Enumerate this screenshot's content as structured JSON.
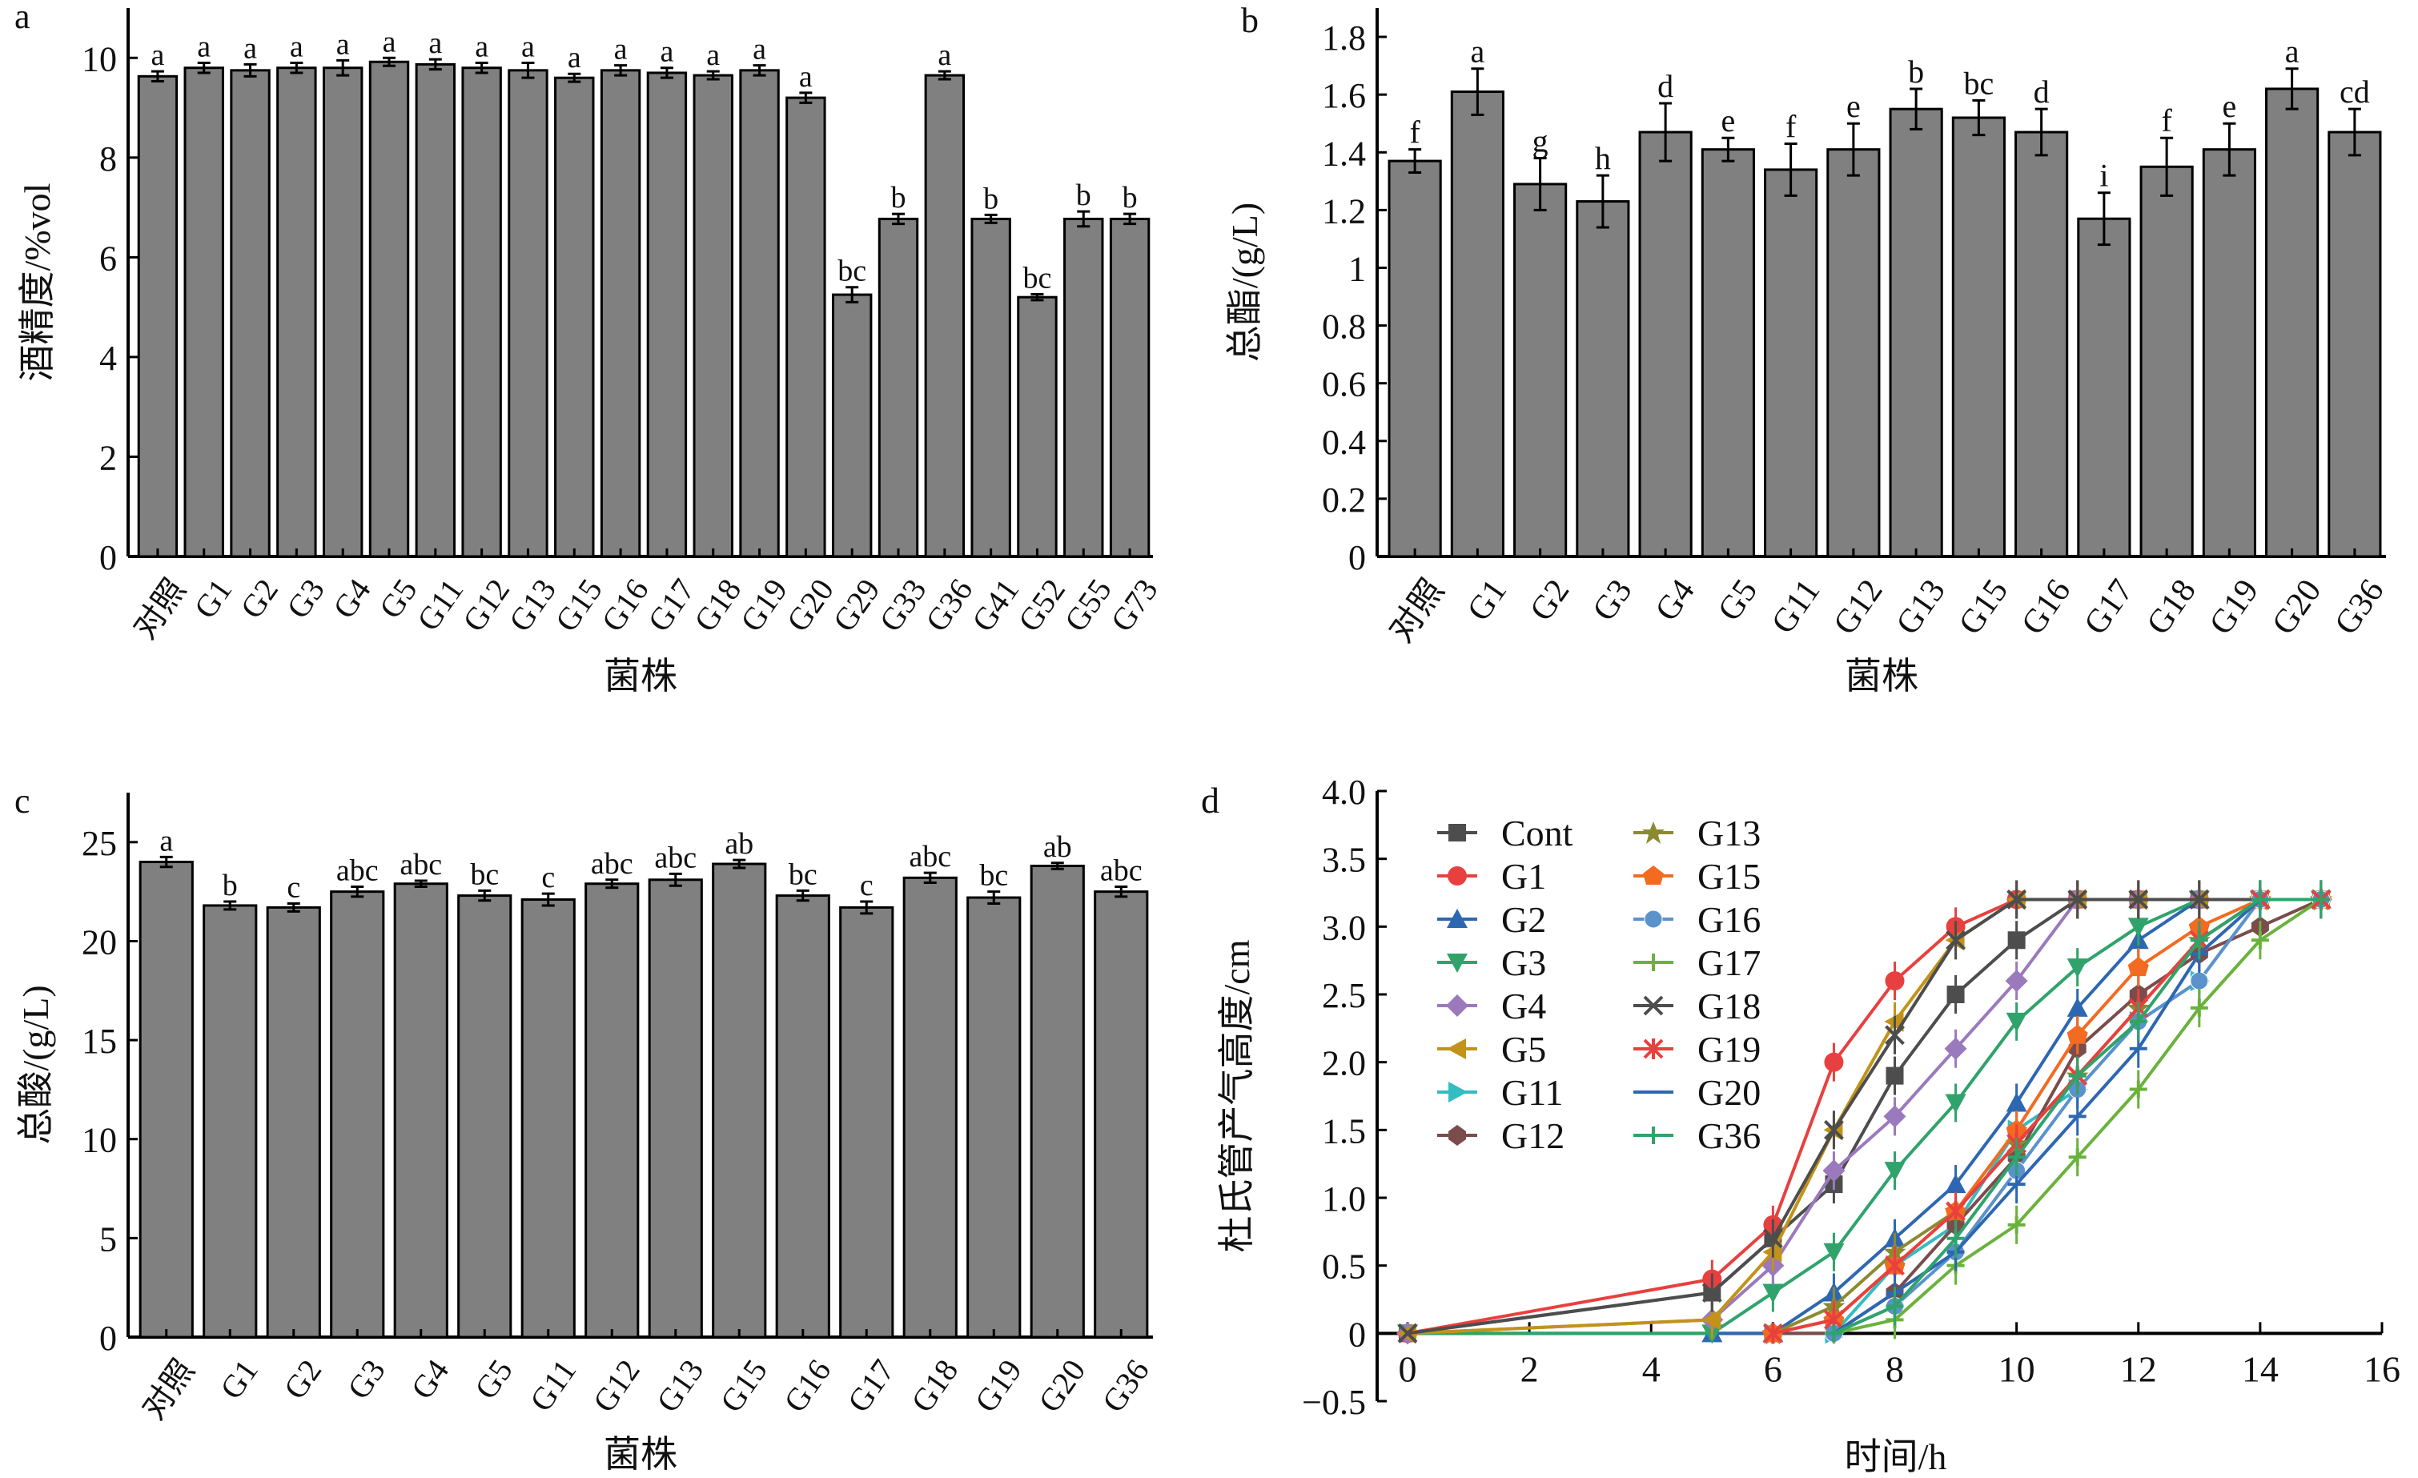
{
  "chart_data": [
    {
      "panel": "a",
      "type": "bar",
      "xlabel": "菌株",
      "ylabel": "酒精度/%vol",
      "ylim": [
        0,
        11
      ],
      "yticks": [
        0,
        2,
        4,
        6,
        8,
        10
      ],
      "bar_color": "#808080",
      "categories": [
        "对照",
        "G1",
        "G2",
        "G3",
        "G4",
        "G5",
        "G11",
        "G12",
        "G13",
        "G15",
        "G16",
        "G17",
        "G18",
        "G19",
        "G20",
        "G29",
        "G33",
        "G36",
        "G41",
        "G52",
        "G55",
        "G73"
      ],
      "values": [
        9.63,
        9.8,
        9.75,
        9.8,
        9.8,
        9.92,
        9.87,
        9.8,
        9.75,
        9.6,
        9.75,
        9.7,
        9.65,
        9.75,
        9.2,
        5.25,
        6.77,
        9.65,
        6.77,
        5.2,
        6.77,
        6.77
      ],
      "errors": [
        0.1,
        0.1,
        0.12,
        0.1,
        0.15,
        0.08,
        0.1,
        0.1,
        0.15,
        0.08,
        0.1,
        0.1,
        0.08,
        0.1,
        0.1,
        0.15,
        0.1,
        0.08,
        0.08,
        0.06,
        0.15,
        0.1
      ],
      "labels": [
        "a",
        "a",
        "a",
        "a",
        "a",
        "a",
        "a",
        "a",
        "a",
        "a",
        "a",
        "a",
        "a",
        "a",
        "a",
        "bc",
        "b",
        "a",
        "b",
        "bc",
        "b",
        "b"
      ]
    },
    {
      "panel": "b",
      "type": "bar",
      "xlabel": "菌株",
      "ylabel": "总酯/(g/L)",
      "ylim": [
        0,
        1.9
      ],
      "yticks": [
        0,
        0.2,
        0.4,
        0.6,
        0.8,
        1.0,
        1.2,
        1.4,
        1.6,
        1.8
      ],
      "bar_color": "#808080",
      "categories": [
        "对照",
        "G1",
        "G2",
        "G3",
        "G4",
        "G5",
        "G11",
        "G12",
        "G13",
        "G15",
        "G16",
        "G17",
        "G18",
        "G19",
        "G20",
        "G36"
      ],
      "values": [
        1.37,
        1.61,
        1.29,
        1.23,
        1.47,
        1.41,
        1.34,
        1.41,
        1.55,
        1.52,
        1.47,
        1.17,
        1.35,
        1.41,
        1.62,
        1.47
      ],
      "errors": [
        0.04,
        0.08,
        0.09,
        0.09,
        0.1,
        0.04,
        0.09,
        0.09,
        0.07,
        0.06,
        0.08,
        0.09,
        0.1,
        0.09,
        0.07,
        0.08
      ],
      "labels": [
        "f",
        "a",
        "g",
        "h",
        "d",
        "e",
        "f",
        "e",
        "b",
        "bc",
        "d",
        "i",
        "f",
        "e",
        "a",
        "cd"
      ]
    },
    {
      "panel": "c",
      "type": "bar",
      "xlabel": "菌株",
      "ylabel": "总酸/(g/L)",
      "ylim": [
        0,
        27.5
      ],
      "yticks": [
        0,
        5,
        10,
        15,
        20,
        25
      ],
      "bar_color": "#808080",
      "categories": [
        "对照",
        "G1",
        "G2",
        "G3",
        "G4",
        "G5",
        "G11",
        "G12",
        "G13",
        "G15",
        "G16",
        "G17",
        "G18",
        "G19",
        "G20",
        "G36"
      ],
      "values": [
        24.0,
        21.8,
        21.7,
        22.5,
        22.9,
        22.3,
        22.1,
        22.9,
        23.1,
        23.9,
        22.3,
        21.7,
        23.2,
        22.2,
        23.8,
        22.5
      ],
      "errors": [
        0.25,
        0.2,
        0.2,
        0.25,
        0.15,
        0.25,
        0.3,
        0.2,
        0.3,
        0.2,
        0.25,
        0.3,
        0.25,
        0.3,
        0.15,
        0.25
      ],
      "labels": [
        "a",
        "b",
        "c",
        "abc",
        "abc",
        "bc",
        "c",
        "abc",
        "abc",
        "ab",
        "bc",
        "c",
        "abc",
        "bc",
        "ab",
        "abc"
      ]
    },
    {
      "panel": "d",
      "type": "line",
      "xlabel": "时间/h",
      "ylabel": "杜氏管产气高度/cm",
      "xlim": [
        0,
        16
      ],
      "ylim": [
        -0.5,
        4.0
      ],
      "xticks": [
        0,
        2,
        4,
        6,
        8,
        10,
        12,
        14,
        16
      ],
      "yticks": [
        -0.5,
        0,
        0.5,
        1.0,
        1.5,
        2.0,
        2.5,
        3.0,
        3.5,
        4.0
      ],
      "ytick_labels": [
        "−0.5",
        "0",
        "0.5",
        "1.0",
        "1.5",
        "2.0",
        "2.5",
        "3.0",
        "3.5",
        "4.0"
      ],
      "legend_position": "top-left",
      "x": [
        0,
        5,
        6,
        7,
        8,
        9,
        10,
        11,
        12,
        13,
        14,
        15
      ],
      "series": [
        {
          "name": "Cont",
          "color": "#4d4d4d",
          "marker": "square",
          "values": [
            0,
            0.3,
            0.7,
            1.1,
            1.9,
            2.5,
            2.9,
            3.2,
            3.2,
            3.2,
            3.2,
            3.2
          ]
        },
        {
          "name": "G1",
          "color": "#e8403f",
          "marker": "circle",
          "values": [
            0,
            0.4,
            0.8,
            2.0,
            2.6,
            3.0,
            3.2,
            3.2,
            3.2,
            3.2,
            3.2,
            3.2
          ]
        },
        {
          "name": "G2",
          "color": "#2e67b1",
          "marker": "triangle-up",
          "values": [
            null,
            0,
            0,
            0.3,
            0.7,
            1.1,
            1.7,
            2.4,
            2.9,
            3.2,
            3.2,
            3.2
          ]
        },
        {
          "name": "G3",
          "color": "#2fa36b",
          "marker": "triangle-down",
          "values": [
            0,
            0,
            0.3,
            0.6,
            1.2,
            1.7,
            2.3,
            2.7,
            3.0,
            3.2,
            3.2,
            3.2
          ]
        },
        {
          "name": "G4",
          "color": "#9b79bd",
          "marker": "diamond",
          "values": [
            0,
            0.1,
            0.5,
            1.2,
            1.6,
            2.1,
            2.6,
            3.2,
            3.2,
            3.2,
            3.2,
            3.2
          ]
        },
        {
          "name": "G5",
          "color": "#c29318",
          "marker": "triangle-left",
          "values": [
            0,
            0.1,
            0.6,
            1.5,
            2.3,
            2.9,
            3.2,
            3.2,
            3.2,
            3.2,
            3.2,
            3.2
          ]
        },
        {
          "name": "G11",
          "color": "#33bcc2",
          "marker": "triangle-right",
          "values": [
            null,
            null,
            0,
            0,
            0.5,
            0.8,
            1.5,
            1.8,
            2.3,
            2.6,
            3.2,
            3.2
          ]
        },
        {
          "name": "G12",
          "color": "#7a4c4c",
          "marker": "hexagon",
          "values": [
            null,
            null,
            0,
            0,
            0.3,
            0.8,
            1.3,
            2.1,
            2.5,
            2.8,
            3.0,
            3.2
          ]
        },
        {
          "name": "G13",
          "color": "#8c8a2f",
          "marker": "star",
          "values": [
            null,
            null,
            0,
            0.2,
            0.6,
            0.9,
            1.4,
            1.9,
            2.4,
            2.9,
            3.2,
            3.2
          ]
        },
        {
          "name": "G15",
          "color": "#f26b21",
          "marker": "pentagon",
          "values": [
            null,
            null,
            0,
            0.1,
            0.5,
            0.9,
            1.5,
            2.2,
            2.7,
            3.0,
            3.2,
            3.2
          ]
        },
        {
          "name": "G16",
          "color": "#5b92cc",
          "marker": "sphere",
          "values": [
            null,
            null,
            null,
            0,
            0.2,
            0.6,
            1.2,
            1.8,
            2.3,
            2.6,
            3.2,
            3.2
          ]
        },
        {
          "name": "G17",
          "color": "#6ab23c",
          "marker": "plus",
          "values": [
            null,
            null,
            null,
            0,
            0.1,
            0.5,
            0.8,
            1.3,
            1.8,
            2.4,
            2.9,
            3.2
          ]
        },
        {
          "name": "G18",
          "color": "#4d4d4d",
          "marker": "x",
          "values": [
            0,
            0.3,
            0.7,
            1.5,
            2.2,
            2.9,
            3.2,
            3.2,
            3.2,
            3.2,
            3.2,
            3.2
          ]
        },
        {
          "name": "G19",
          "color": "#e8403f",
          "marker": "asterisk",
          "values": [
            null,
            null,
            0,
            0.1,
            0.5,
            0.9,
            1.4,
            1.9,
            2.4,
            2.9,
            3.2,
            3.2
          ]
        },
        {
          "name": "G20",
          "color": "#2e67b1",
          "marker": "dash",
          "values": [
            null,
            null,
            null,
            0,
            0.3,
            0.6,
            1.1,
            1.6,
            2.1,
            2.8,
            3.2,
            3.2
          ]
        },
        {
          "name": "G36",
          "color": "#2fa36b",
          "marker": "plus",
          "values": [
            null,
            null,
            null,
            0,
            0.2,
            0.7,
            1.3,
            1.9,
            2.3,
            2.9,
            3.2,
            3.2
          ]
        }
      ]
    }
  ]
}
